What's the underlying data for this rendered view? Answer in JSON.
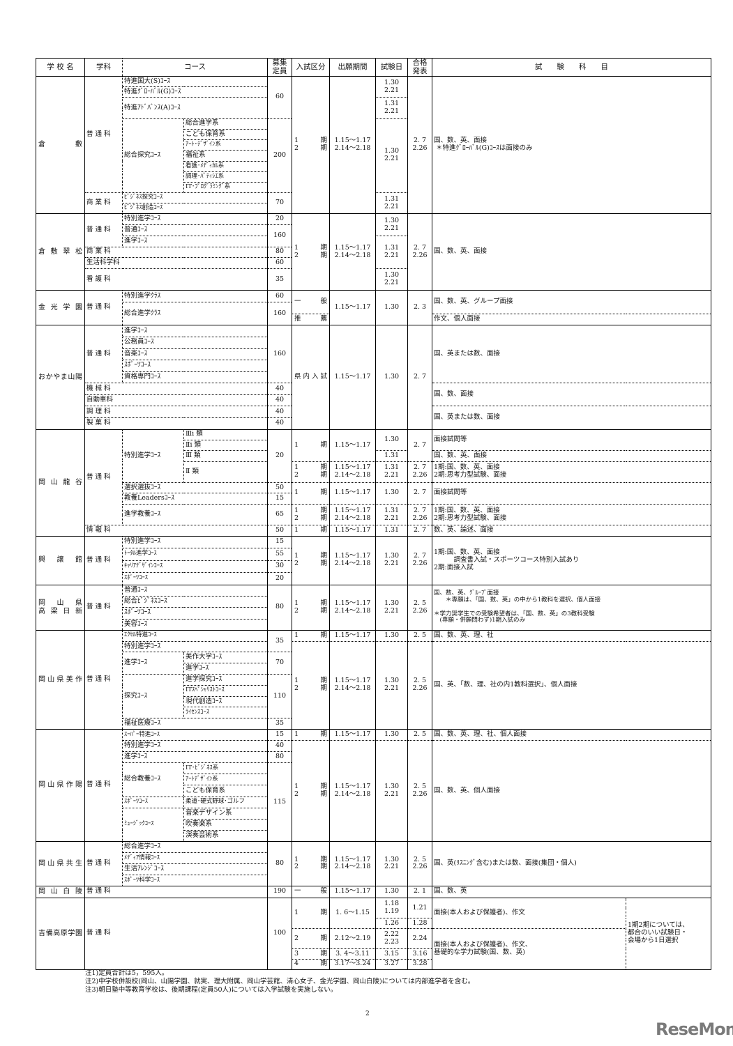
{
  "header": {
    "school": "学 校 名",
    "dept": "学科",
    "course": "コース",
    "capacity": "募集\n定員",
    "exam_type": "入試区分",
    "period": "出願期間",
    "exam_date": "試験日",
    "result": "合格\n発表",
    "subjects": "試　　験　　科　　目"
  },
  "schools": [
    {
      "name": "倉敷",
      "dept": "普 通 科",
      "courses": [
        "特進国大(S)ｺｰｽ",
        "特進ｸﾞﾛｰﾊﾞﾙ(G)ｺｰｽ",
        "特進ｱﾄﾞﾊﾞﾝｽ(A)ｺｰｽ",
        "総合探究ｺｰｽ"
      ],
      "subs": [
        "総合進学系",
        "こども保育系",
        "ｱｰﾄ･ﾃﾞｻﾞｲﾝ系",
        "福祉系",
        "看護･ﾒﾃﾞｨｶﾙ系",
        "調理･ﾊﾟﾃｨｼｴ系",
        "IT･ﾌﾟﾛｸﾞﾗﾐﾝｸﾞ系"
      ],
      "caps": [
        "60",
        "200",
        "70"
      ],
      "dept2": "商 業 科",
      "courses2": [
        "ﾋﾞｼﾞﾈｽ探究ｺｰｽ",
        "ﾋﾞｼﾞﾈｽ創造ｺｰｽ"
      ],
      "kubun": "1 期\n2 期",
      "period": "1.15～1.17\n2.14～2.18",
      "exam": [
        "1.30\n2.21",
        "1.31\n2.21",
        "1.30\n2.21",
        "1.31\n2.21"
      ],
      "result": "2. 7\n2.26",
      "subjects": "国、数、英、面接\n ＊特進ｸﾞﾛｰﾊﾞﾙ(G)ｺｰｽは面接のみ"
    },
    {
      "name": "倉敷翠松",
      "dept": "普 通 科",
      "courses": [
        "特別進学ｺｰｽ",
        "普通ｺｰｽ",
        "進学ｺｰｽ"
      ],
      "depts": [
        "商 業 科",
        "生活科学科",
        "看 護 科"
      ],
      "caps": [
        "20",
        "160",
        "80",
        "60",
        "35"
      ],
      "kubun": "1 期\n2 期",
      "period": "1.15～1.17\n2.14～2.18",
      "exam": [
        "1.30\n2.21",
        "1.31\n2.21",
        "1.30\n2.21"
      ],
      "result": "2. 7\n2.26",
      "subjects": "国、数、英、面接"
    },
    {
      "name": "金光学園",
      "dept": "普 通 科",
      "courses": [
        "特別進学ｸﾗｽ",
        "総合進学ｸﾗｽ"
      ],
      "caps": [
        "60",
        "160"
      ],
      "kubun": [
        "一 般",
        "推 薦"
      ],
      "period": "1.15～1.17",
      "exam": "1.30",
      "result": "2. 3",
      "subjects": [
        "国、数、英、グループ面接",
        "作文、個人面接"
      ]
    },
    {
      "name": "おかやま山陽",
      "dept": "普 通 科",
      "courses": [
        "進学ｺｰｽ",
        "公務員ｺｰｽ",
        "音楽ｺｰｽ",
        "ｽﾎﾟｰﾂｺｰｽ",
        "資格専門ｺｰｽ"
      ],
      "depts": [
        "機 械 科",
        "自動車科",
        "調 理 科",
        "製 菓 科"
      ],
      "caps": [
        "160",
        "40",
        "40",
        "40",
        "40"
      ],
      "kubun": "県内入試",
      "period": "1.15～1.17",
      "exam": "1.30",
      "result": "2. 7",
      "subjects": [
        "国、英または数、面接",
        "国、数、面接",
        "国、英または数、面接"
      ]
    },
    {
      "name": "岡山龍谷",
      "dept": "普 通 科",
      "course_special": "特別進学ｺｰｽ",
      "subs": [
        "Ⅲi 類",
        "Ⅱi 類",
        "Ⅲ 類",
        "Ⅱ 類"
      ],
      "courses": [
        "選択選抜ｺｰｽ",
        "教養Leadersｺｰｽ",
        "進学教養ｺｰｽ"
      ],
      "dept2": "情 報 科",
      "caps": [
        "20",
        "50",
        "15",
        "65",
        "50"
      ],
      "kubun": [
        "1 期",
        "1 期\n2 期",
        "1 期",
        "1 期\n2 期",
        "1 期"
      ],
      "period": [
        "1.15～1.17",
        "1.15～1.17\n2.14～2.18",
        "1.15～1.17",
        "1.15～1.17\n2.14～2.18",
        "1.15～1.17"
      ],
      "exam": [
        "1.30",
        "1.31",
        "1.31\n2.21",
        "1.30",
        "1.31\n2.21",
        "1.31"
      ],
      "result": [
        "2. 7",
        "2. 7\n2.26",
        "2. 7",
        "2. 7\n2.26",
        "2. 7"
      ],
      "subjects": [
        "面接試問等",
        "国、数、英、面接",
        "1期:国、数、英、面接\n2期:思考力型試験、面接",
        "面接試問等",
        "1期:国、数、英、面接\n2期:思考力型試験、面接",
        "数、英、論述、面接"
      ]
    },
    {
      "name": "興譲館",
      "dept": "普 通 科",
      "courses": [
        "特別進学ｺｰｽ",
        "ﾄｰﾀﾙ進学ｺｰｽ",
        "ｷｬﾘｱﾃﾞｻﾞｲﾝｺｰｽ",
        "ｽﾎﾟｰﾂｺｰｽ"
      ],
      "caps": [
        "15",
        "55",
        "30",
        "20"
      ],
      "kubun": "1 期\n2 期",
      "period": "1.15～1.17\n2.14～2.18",
      "exam": "1.30\n2.21",
      "result": "2. 7\n2.26",
      "subjects": "1期:国、数、英、面接\n　　　調査書入試・スポーツコース特別入試あり\n2期:面接入試"
    },
    {
      "name": "岡山県\n高梁日新",
      "dept": "普 通 科",
      "courses": [
        "普通ｺｰｽ",
        "総合ﾋﾞｼﾞﾈｽｺｰｽ",
        "ｽﾎﾟｰﾂｺｰｽ",
        "美容ｺｰｽ"
      ],
      "caps": [
        "80"
      ],
      "kubun": "1 期\n2 期",
      "period": "1.15～1.17\n2.14～2.18",
      "exam": "1.30\n2.21",
      "result": "2. 5\n2.26",
      "subjects": "国、数、英、ｸﾞﾙｰﾌﾟ面接\n　　＊専願は、「国、数、英」の中から1教科を選択、個人面接\n\n＊学力奨学生での受験希望者は、「国、数、英」の3教科受験\n　(専願・併願問わず)1期入試のみ"
    },
    {
      "name": "岡山県美作",
      "dept": "普 通 科",
      "courses": [
        "ｴｸｾﾙ特進ｺｰｽ",
        "特別進学ｺｰｽ",
        "進学ｺｰｽ",
        "探究ｺｰｽ",
        "福祉医療ｺｰｽ"
      ],
      "subs": [
        "美作大学ｺｰｽ",
        "進学ｺｰｽ",
        "進学探究ｺｰｽ",
        "ITｽﾍﾟｼｬﾘｽﾄｺｰｽ",
        "現代創造ｺｰｽ",
        "ﾗｲｾﾝｽｺｰｽ"
      ],
      "caps": [
        "35",
        "70",
        "110",
        "35"
      ],
      "kubun": [
        "1 期",
        "1 期\n2 期"
      ],
      "period": [
        "1.15～1.17",
        "1.15～1.17\n2.14～2.18"
      ],
      "exam": [
        "1.30",
        "1.30\n2.21"
      ],
      "result": [
        "2. 5",
        "2. 5\n2.26"
      ],
      "subjects": [
        "国、数、英、理、社",
        "国、英、「数、理、社の内1教科選択」、個人面接"
      ]
    },
    {
      "name": "岡山県作陽",
      "dept": "普 通 科",
      "courses": [
        "ｽｰﾊﾟｰ特進ｺｰｽ",
        "特別進学ｺｰｽ",
        "進学ｺｰｽ",
        "総合教養ｺｰｽ",
        "ｽﾎﾟｰﾂｺｰｽ",
        "ﾐｭｰｼﾞｯｸｺｰｽ"
      ],
      "subs": [
        "IT･ﾋﾞｼﾞﾈｽ系",
        "ｱｰﾄﾃﾞｻﾞｲﾝ系",
        "こども保育系",
        "柔道･硬式野球･ゴルフ",
        "音楽デザイン系",
        "吹奏楽系",
        "演奏芸術系"
      ],
      "caps": [
        "15",
        "40",
        "80",
        "115"
      ],
      "kubun": [
        "1 期",
        "1 期\n2 期"
      ],
      "period": [
        "1.15～1.17",
        "1.15～1.17\n2.14～2.18"
      ],
      "exam": [
        "1.30",
        "1.30\n2.21"
      ],
      "result": [
        "2. 5",
        "2. 5\n2.26"
      ],
      "subjects": [
        "国、数、英、理、社、個人面接",
        "国、数、英、個人面接"
      ]
    },
    {
      "name": "岡山県共生",
      "dept": "普 通 科",
      "courses": [
        "総合進学ｺｰｽ",
        "ﾒﾃﾞｨｱ情報ｺｰｽ",
        "生活ｱﾚﾝｼﾞｺｰｽ",
        "ｽﾎﾟｰﾂ科学ｺｰｽ"
      ],
      "caps": [
        "80"
      ],
      "kubun": "1 期\n2 期",
      "period": "1.15～1.17\n2.14～2.18",
      "exam": "1.30\n2.21",
      "result": "2. 5\n2.26",
      "subjects": "国、英(ﾘｽﾆﾝｸﾞ含む)または数、面接(集団・個人)"
    },
    {
      "name": "岡山白陵",
      "dept": "普 通 科",
      "caps": "190",
      "kubun": "一 般",
      "period": "1.15～1.17",
      "exam": "1.30",
      "result": "2. 1",
      "subjects": "国、数、英"
    },
    {
      "name": "吉備高原学園",
      "dept": "普 通 科",
      "caps": "100",
      "kubun": [
        "1 期",
        "2 期",
        "3 期",
        "4 期"
      ],
      "period": [
        "1. 6～1.15",
        "2.12～2.19",
        "3. 4～3.11",
        "3.17～3.24"
      ],
      "exam": [
        "1.18\n1.19",
        "1.26",
        "2.22\n2.23",
        "3.15",
        "3.27"
      ],
      "result": [
        "1.21",
        "1.28",
        "2.24",
        "3.16",
        "3.28"
      ],
      "subjects": [
        "面接(本人および保護者)、作文",
        "面接(本人および保護者)、作文、\n基礎的な学力試験(国、数、英)"
      ],
      "note": "1期2期については、\n都合のいい試験日・\n会場から1日選択"
    }
  ],
  "notes": [
    "注1)定員合計は5，595人。",
    "注2)中学校併設校(岡山、山陽学園、就実、理大附属、岡山学芸館、清心女子、金光学園、岡山白陵)については内部進学者を含む。",
    "注3)朝日塾中等教育学校は、後期課程(定員50人)については入学試験を実施しない。"
  ],
  "page_number": "2",
  "logo": "ReseMom",
  "colors": {
    "text": "#111111",
    "border": "#000000",
    "logo": "#7a7a7a"
  }
}
